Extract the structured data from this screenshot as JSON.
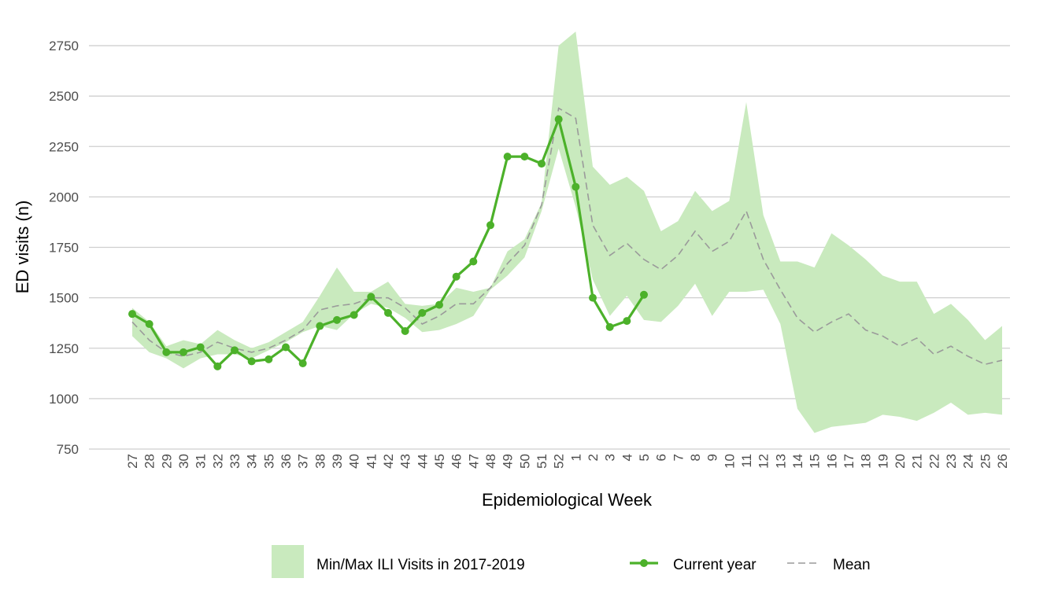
{
  "chart_data": {
    "type": "line",
    "xlabel": "Epidemiological Week",
    "ylabel": "ED visits (n)",
    "categories": [
      "27",
      "28",
      "29",
      "30",
      "31",
      "32",
      "33",
      "34",
      "35",
      "36",
      "37",
      "38",
      "39",
      "40",
      "41",
      "42",
      "43",
      "44",
      "45",
      "46",
      "47",
      "48",
      "49",
      "50",
      "51",
      "52",
      "1",
      "2",
      "3",
      "4",
      "5",
      "6",
      "7",
      "8",
      "9",
      "10",
      "11",
      "12",
      "13",
      "14",
      "15",
      "16",
      "17",
      "18",
      "19",
      "20",
      "21",
      "22",
      "23",
      "24",
      "25",
      "26"
    ],
    "band": {
      "name": "Min/Max ILI Visits in 2017-2019",
      "color": "#c9eabe",
      "low": [
        1310,
        1230,
        1200,
        1150,
        1200,
        1220,
        1220,
        1200,
        1240,
        1280,
        1330,
        1360,
        1340,
        1420,
        1470,
        1450,
        1400,
        1330,
        1340,
        1370,
        1410,
        1540,
        1610,
        1700,
        1930,
        2240,
        1950,
        1590,
        1410,
        1510,
        1390,
        1380,
        1460,
        1570,
        1410,
        1530,
        1530,
        1540,
        1370,
        950,
        830,
        860,
        870,
        880,
        920,
        910,
        890,
        930,
        980,
        920,
        930,
        920
      ],
      "high": [
        1450,
        1380,
        1260,
        1290,
        1270,
        1340,
        1290,
        1250,
        1280,
        1330,
        1380,
        1510,
        1650,
        1530,
        1530,
        1580,
        1470,
        1460,
        1470,
        1550,
        1530,
        1550,
        1730,
        1790,
        1970,
        2750,
        2820,
        2150,
        2060,
        2100,
        2030,
        1830,
        1880,
        2030,
        1930,
        1980,
        2470,
        1910,
        1680,
        1680,
        1650,
        1820,
        1760,
        1690,
        1610,
        1580,
        1580,
        1420,
        1470,
        1390,
        1290,
        1360
      ]
    },
    "series": [
      {
        "name": "Current year",
        "color": "#4cb12a",
        "values": [
          1420,
          1370,
          1230,
          1230,
          1255,
          1160,
          1240,
          1185,
          1195,
          1255,
          1175,
          1360,
          1390,
          1415,
          1505,
          1425,
          1335,
          1425,
          1465,
          1605,
          1680,
          1860,
          2200,
          2200,
          2165,
          2385,
          2050,
          1500,
          1355,
          1385,
          1515,
          null,
          null,
          null,
          null,
          null,
          null,
          null,
          null,
          null,
          null,
          null,
          null,
          null,
          null,
          null,
          null,
          null,
          null,
          null,
          null,
          null
        ]
      },
      {
        "name": "Mean",
        "color": "#9a9a9a",
        "dashed": true,
        "values": [
          1380,
          1290,
          1230,
          1210,
          1230,
          1280,
          1250,
          1230,
          1250,
          1290,
          1340,
          1440,
          1460,
          1470,
          1500,
          1500,
          1450,
          1370,
          1410,
          1470,
          1470,
          1550,
          1670,
          1760,
          1960,
          2440,
          2390,
          1860,
          1710,
          1770,
          1690,
          1640,
          1710,
          1830,
          1730,
          1780,
          1930,
          1690,
          1540,
          1400,
          1330,
          1380,
          1420,
          1340,
          1310,
          1260,
          1300,
          1220,
          1260,
          1210,
          1170,
          1190
        ]
      }
    ],
    "ylim": [
      750,
      2850
    ],
    "yticks": [
      750,
      1000,
      1250,
      1500,
      1750,
      2000,
      2250,
      2500,
      2750
    ],
    "grid": true,
    "legend": "bottom"
  }
}
